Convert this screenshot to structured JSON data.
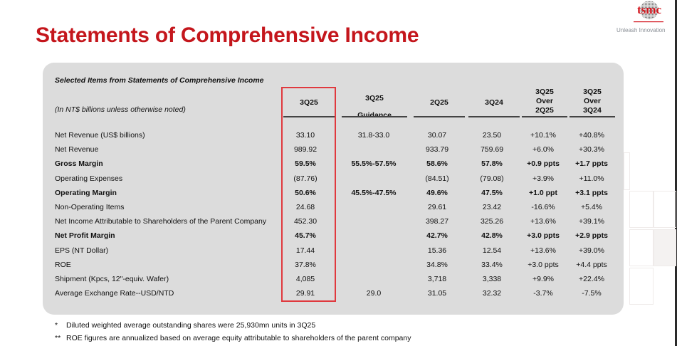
{
  "header": {
    "title": "Statements of Comprehensive Income",
    "logo_text": "tsmc",
    "tagline": "Unleash Innovation",
    "brand_color": "#c4161c"
  },
  "table": {
    "section_title": "Selected Items from Statements of Comprehensive Income",
    "unit_note": "(In NT$ billions unless otherwise noted)",
    "highlight_color": "#e0393e",
    "columns": [
      "3Q25",
      "3Q25 Guidance",
      "2Q25",
      "3Q24",
      "3Q25 Over 2Q25",
      "3Q25 Over 3Q24"
    ],
    "column_lines": [
      [
        "3Q25"
      ],
      [
        "3Q25",
        "Guidance"
      ],
      [
        "2Q25"
      ],
      [
        "3Q24"
      ],
      [
        "3Q25",
        "Over",
        "2Q25"
      ],
      [
        "3Q25",
        "Over",
        "3Q24"
      ]
    ],
    "rows": [
      {
        "label": "Net Revenue (US$ billions)",
        "bold": false,
        "values": [
          "33.10",
          "31.8-33.0",
          "30.07",
          "23.50",
          "+10.1%",
          "+40.8%"
        ]
      },
      {
        "label": "Net Revenue",
        "bold": false,
        "values": [
          "989.92",
          "",
          "933.79",
          "759.69",
          "+6.0%",
          "+30.3%"
        ]
      },
      {
        "label": "Gross Margin",
        "bold": true,
        "values": [
          "59.5%",
          "55.5%-57.5%",
          "58.6%",
          "57.8%",
          "+0.9 ppts",
          "+1.7 ppts"
        ]
      },
      {
        "label": "Operating Expenses",
        "bold": false,
        "values": [
          "(87.76)",
          "",
          "(84.51)",
          "(79.08)",
          "+3.9%",
          "+11.0%"
        ]
      },
      {
        "label": "Operating Margin",
        "bold": true,
        "values": [
          "50.6%",
          "45.5%-47.5%",
          "49.6%",
          "47.5%",
          "+1.0 ppt",
          "+3.1 ppts"
        ]
      },
      {
        "label": "Non-Operating Items",
        "bold": false,
        "values": [
          "24.68",
          "",
          "29.61",
          "23.42",
          "-16.6%",
          "+5.4%"
        ]
      },
      {
        "label": "Net Income Attributable to Shareholders of the Parent Company",
        "bold": false,
        "values": [
          "452.30",
          "",
          "398.27",
          "325.26",
          "+13.6%",
          "+39.1%"
        ]
      },
      {
        "label": "Net Profit Margin",
        "bold": true,
        "values": [
          "45.7%",
          "",
          "42.7%",
          "42.8%",
          "+3.0 ppts",
          "+2.9 ppts"
        ]
      },
      {
        "label": "EPS (NT Dollar)",
        "bold": false,
        "values": [
          "17.44",
          "",
          "15.36",
          "12.54",
          "+13.6%",
          "+39.0%"
        ]
      },
      {
        "label": "ROE",
        "bold": false,
        "values": [
          "37.8%",
          "",
          "34.8%",
          "33.4%",
          "+3.0 ppts",
          "+4.4 ppts"
        ]
      },
      {
        "label": "Shipment (Kpcs, 12\"-equiv. Wafer)",
        "bold": false,
        "values": [
          "4,085",
          "",
          "3,718",
          "3,338",
          "+9.9%",
          "+22.4%"
        ]
      },
      {
        "label": "Average Exchange Rate--USD/NTD",
        "bold": false,
        "values": [
          "29.91",
          "29.0",
          "31.05",
          "32.32",
          "-3.7%",
          "-7.5%"
        ]
      }
    ]
  },
  "footnotes": [
    {
      "marker": "*",
      "text": "Diluted weighted average outstanding shares were 25,930mn units in 3Q25"
    },
    {
      "marker": "**",
      "text": "ROE figures are annualized based on average equity attributable to shareholders of the parent company"
    }
  ]
}
